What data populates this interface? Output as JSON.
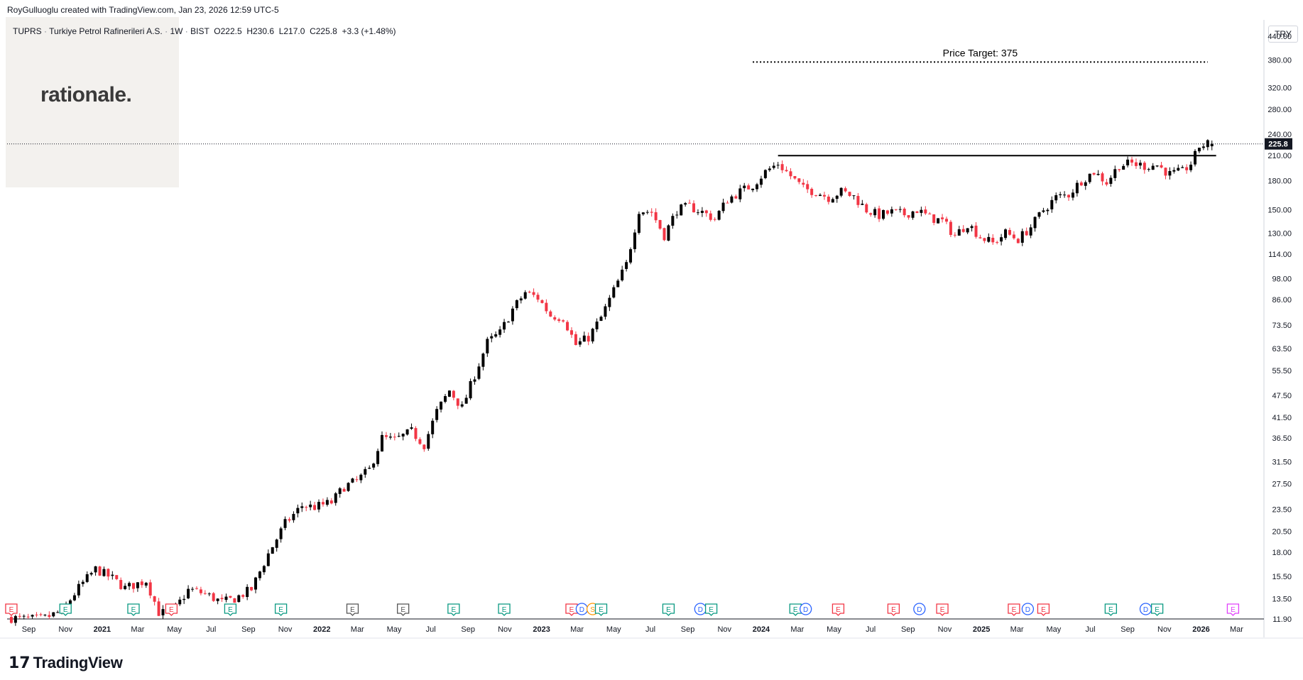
{
  "header": {
    "watermark": "RoyGulluoglu created with TradingView.com, Jan 23, 2026 12:59 UTC-5"
  },
  "symbol_bar": {
    "ticker": "TUPRS",
    "name": "Turkiye Petrol Rafinerileri A.S.",
    "interval": "1W",
    "exchange": "BIST",
    "open": "O222.5",
    "high": "H230.6",
    "low": "L217.0",
    "close": "C225.8",
    "change": "+3.3 (+1.48%)"
  },
  "brand_overlay": "rationale.",
  "currency_button": "TRY",
  "footer_brand": "TradingView",
  "colors": {
    "up": "#000000",
    "down": "#f23645",
    "grid": "#f0f3fa",
    "axis_text": "#131722",
    "earnings_green": "#089981",
    "earnings_red": "#f23645",
    "dividend": "#2962ff",
    "split": "#ff9800",
    "future": "#e040fb",
    "gray_event": "#555555"
  },
  "chart_data": {
    "type": "candlestick",
    "title": "",
    "scale": "log",
    "ylim": [
      11.9,
      470
    ],
    "price_label": "225.8",
    "y_ticks": [
      "440.00",
      "380.00",
      "320.00",
      "280.00",
      "240.00",
      "210.00",
      "180.00",
      "150.00",
      "130.00",
      "114.00",
      "98.00",
      "86.00",
      "73.50",
      "63.50",
      "55.50",
      "47.50",
      "41.50",
      "36.50",
      "31.50",
      "27.50",
      "23.50",
      "20.50",
      "18.00",
      "15.50",
      "13.50",
      "11.90"
    ],
    "x_ticks": [
      {
        "label": "Sep",
        "date": "2020-09-01",
        "bold": false
      },
      {
        "label": "Nov",
        "date": "2020-11-01",
        "bold": false
      },
      {
        "label": "2021",
        "date": "2021-01-01",
        "bold": true
      },
      {
        "label": "Mar",
        "date": "2021-03-01",
        "bold": false
      },
      {
        "label": "May",
        "date": "2021-05-01",
        "bold": false
      },
      {
        "label": "Jul",
        "date": "2021-07-01",
        "bold": false
      },
      {
        "label": "Sep",
        "date": "2021-09-01",
        "bold": false
      },
      {
        "label": "Nov",
        "date": "2021-11-01",
        "bold": false
      },
      {
        "label": "2022",
        "date": "2022-01-01",
        "bold": true
      },
      {
        "label": "Mar",
        "date": "2022-03-01",
        "bold": false
      },
      {
        "label": "May",
        "date": "2022-05-01",
        "bold": false
      },
      {
        "label": "Jul",
        "date": "2022-07-01",
        "bold": false
      },
      {
        "label": "Sep",
        "date": "2022-09-01",
        "bold": false
      },
      {
        "label": "Nov",
        "date": "2022-11-01",
        "bold": false
      },
      {
        "label": "2023",
        "date": "2023-01-01",
        "bold": true
      },
      {
        "label": "Mar",
        "date": "2023-03-01",
        "bold": false
      },
      {
        "label": "May",
        "date": "2023-05-01",
        "bold": false
      },
      {
        "label": "Jul",
        "date": "2023-07-01",
        "bold": false
      },
      {
        "label": "Sep",
        "date": "2023-09-01",
        "bold": false
      },
      {
        "label": "Nov",
        "date": "2023-11-01",
        "bold": false
      },
      {
        "label": "2024",
        "date": "2024-01-01",
        "bold": true
      },
      {
        "label": "Mar",
        "date": "2024-03-01",
        "bold": false
      },
      {
        "label": "May",
        "date": "2024-05-01",
        "bold": false
      },
      {
        "label": "Jul",
        "date": "2024-07-01",
        "bold": false
      },
      {
        "label": "Sep",
        "date": "2024-09-01",
        "bold": false
      },
      {
        "label": "Nov",
        "date": "2024-11-01",
        "bold": false
      },
      {
        "label": "2025",
        "date": "2025-01-01",
        "bold": true
      },
      {
        "label": "Mar",
        "date": "2025-03-01",
        "bold": false
      },
      {
        "label": "May",
        "date": "2025-05-01",
        "bold": false
      },
      {
        "label": "Jul",
        "date": "2025-07-01",
        "bold": false
      },
      {
        "label": "Sep",
        "date": "2025-09-01",
        "bold": false
      },
      {
        "label": "Nov",
        "date": "2025-11-01",
        "bold": false
      },
      {
        "label": "2026",
        "date": "2026-01-01",
        "bold": true
      },
      {
        "label": "Mar",
        "date": "2026-03-01",
        "bold": false
      }
    ],
    "price_path": [
      [
        "2020-08-03",
        12.0
      ],
      [
        "2020-09-01",
        11.9
      ],
      [
        "2020-10-01",
        11.9
      ],
      [
        "2020-11-02",
        12.5
      ],
      [
        "2020-12-01",
        14.5
      ],
      [
        "2020-12-28",
        16.2
      ],
      [
        "2021-01-25",
        15.3
      ],
      [
        "2021-02-15",
        14.4
      ],
      [
        "2021-03-22",
        15.1
      ],
      [
        "2021-04-12",
        12.4
      ],
      [
        "2021-05-03",
        12.3
      ],
      [
        "2021-06-01",
        14.3
      ],
      [
        "2021-06-28",
        13.9
      ],
      [
        "2021-07-26",
        13.2
      ],
      [
        "2021-08-16",
        13.5
      ],
      [
        "2021-09-13",
        14.3
      ],
      [
        "2021-10-11",
        17.8
      ],
      [
        "2021-11-08",
        21.5
      ],
      [
        "2021-12-06",
        24.0
      ],
      [
        "2021-12-27",
        23.8
      ],
      [
        "2022-01-24",
        24.5
      ],
      [
        "2022-02-14",
        27.0
      ],
      [
        "2022-03-07",
        28.0
      ],
      [
        "2022-03-28",
        30.0
      ],
      [
        "2022-04-18",
        36.5
      ],
      [
        "2022-05-09",
        36.0
      ],
      [
        "2022-06-06",
        38.0
      ],
      [
        "2022-06-27",
        35.0
      ],
      [
        "2022-07-18",
        43.0
      ],
      [
        "2022-08-08",
        49.0
      ],
      [
        "2022-08-29",
        44.0
      ],
      [
        "2022-09-19",
        54.0
      ],
      [
        "2022-10-10",
        66.0
      ],
      [
        "2022-10-31",
        70.0
      ],
      [
        "2022-11-21",
        81.0
      ],
      [
        "2022-12-12",
        90.0
      ],
      [
        "2023-01-02",
        87.0
      ],
      [
        "2023-01-23",
        78.0
      ],
      [
        "2023-02-13",
        77.0
      ],
      [
        "2023-03-06",
        65.0
      ],
      [
        "2023-03-27",
        68.0
      ],
      [
        "2023-04-17",
        77.0
      ],
      [
        "2023-05-08",
        91.0
      ],
      [
        "2023-05-29",
        107.0
      ],
      [
        "2023-06-19",
        150.0
      ],
      [
        "2023-07-10",
        148.0
      ],
      [
        "2023-07-31",
        128.0
      ],
      [
        "2023-08-21",
        150.0
      ],
      [
        "2023-09-11",
        153.0
      ],
      [
        "2023-10-02",
        148.0
      ],
      [
        "2023-10-23",
        142.0
      ],
      [
        "2023-11-13",
        160.0
      ],
      [
        "2023-12-04",
        168.0
      ],
      [
        "2023-12-25",
        175.0
      ],
      [
        "2024-01-15",
        190.0
      ],
      [
        "2024-02-05",
        200.0
      ],
      [
        "2024-02-26",
        185.0
      ],
      [
        "2024-03-18",
        171.0
      ],
      [
        "2024-04-08",
        168.0
      ],
      [
        "2024-04-29",
        162.0
      ],
      [
        "2024-05-20",
        168.0
      ],
      [
        "2024-06-10",
        163.0
      ],
      [
        "2024-07-01",
        150.0
      ],
      [
        "2024-07-22",
        145.0
      ],
      [
        "2024-08-12",
        148.0
      ],
      [
        "2024-09-02",
        146.0
      ],
      [
        "2024-09-23",
        150.0
      ],
      [
        "2024-10-14",
        143.0
      ],
      [
        "2024-11-04",
        140.0
      ],
      [
        "2024-11-25",
        128.0
      ],
      [
        "2024-12-16",
        138.0
      ],
      [
        "2025-01-06",
        127.0
      ],
      [
        "2025-01-27",
        122.0
      ],
      [
        "2025-02-17",
        130.0
      ],
      [
        "2025-03-10",
        125.0
      ],
      [
        "2025-03-31",
        135.0
      ],
      [
        "2025-04-21",
        150.0
      ],
      [
        "2025-05-12",
        162.0
      ],
      [
        "2025-06-02",
        165.0
      ],
      [
        "2025-06-23",
        180.0
      ],
      [
        "2025-07-14",
        190.0
      ],
      [
        "2025-08-04",
        178.0
      ],
      [
        "2025-08-25",
        198.0
      ],
      [
        "2025-09-15",
        200.0
      ],
      [
        "2025-10-06",
        197.0
      ],
      [
        "2025-10-27",
        198.0
      ],
      [
        "2025-11-17",
        187.0
      ],
      [
        "2025-12-08",
        190.0
      ],
      [
        "2025-12-22",
        200.0
      ],
      [
        "2025-12-29",
        210.0
      ],
      [
        "2026-01-05",
        222.5
      ],
      [
        "2026-01-19",
        225.8
      ]
    ],
    "resistance_line": {
      "from": "2024-01-29",
      "to": "2026-01-26",
      "price": 210
    },
    "current_price_line": 225.8,
    "price_target": {
      "label": "Price Target: 375",
      "value": 375,
      "from": "2023-12-18",
      "to": "2026-01-12"
    },
    "events": [
      {
        "date": "2020-08-03",
        "type": "E",
        "color": "earnings_red"
      },
      {
        "date": "2020-11-01",
        "type": "E",
        "color": "earnings_green"
      },
      {
        "date": "2021-02-22",
        "type": "E",
        "color": "earnings_green"
      },
      {
        "date": "2021-04-26",
        "type": "E",
        "color": "earnings_red"
      },
      {
        "date": "2021-08-02",
        "type": "E",
        "color": "earnings_green"
      },
      {
        "date": "2021-10-25",
        "type": "E",
        "color": "earnings_green"
      },
      {
        "date": "2022-02-21",
        "type": "E",
        "color": "gray_event"
      },
      {
        "date": "2022-05-16",
        "type": "E",
        "color": "gray_event"
      },
      {
        "date": "2022-08-08",
        "type": "E",
        "color": "earnings_green"
      },
      {
        "date": "2022-10-31",
        "type": "E",
        "color": "earnings_green"
      },
      {
        "date": "2023-02-20",
        "type": "E",
        "color": "earnings_red"
      },
      {
        "date": "2023-03-09",
        "type": "D",
        "color": "dividend"
      },
      {
        "date": "2023-03-27",
        "type": "S",
        "color": "split"
      },
      {
        "date": "2023-04-10",
        "type": "E",
        "color": "earnings_green"
      },
      {
        "date": "2023-07-31",
        "type": "E",
        "color": "earnings_green"
      },
      {
        "date": "2023-09-22",
        "type": "D",
        "color": "dividend"
      },
      {
        "date": "2023-10-10",
        "type": "E",
        "color": "earnings_green"
      },
      {
        "date": "2024-02-27",
        "type": "E",
        "color": "earnings_green"
      },
      {
        "date": "2024-03-15",
        "type": "D",
        "color": "dividend"
      },
      {
        "date": "2024-05-08",
        "type": "E",
        "color": "earnings_red"
      },
      {
        "date": "2024-08-08",
        "type": "E",
        "color": "earnings_red"
      },
      {
        "date": "2024-09-20",
        "type": "D",
        "color": "dividend"
      },
      {
        "date": "2024-10-28",
        "type": "E",
        "color": "earnings_red"
      },
      {
        "date": "2025-02-24",
        "type": "E",
        "color": "earnings_red"
      },
      {
        "date": "2025-03-19",
        "type": "D",
        "color": "dividend"
      },
      {
        "date": "2025-04-14",
        "type": "E",
        "color": "earnings_red"
      },
      {
        "date": "2025-08-04",
        "type": "E",
        "color": "earnings_green"
      },
      {
        "date": "2025-10-01",
        "type": "D",
        "color": "dividend"
      },
      {
        "date": "2025-10-20",
        "type": "E",
        "color": "earnings_green"
      },
      {
        "date": "2026-02-23",
        "type": "E",
        "color": "future"
      }
    ]
  }
}
